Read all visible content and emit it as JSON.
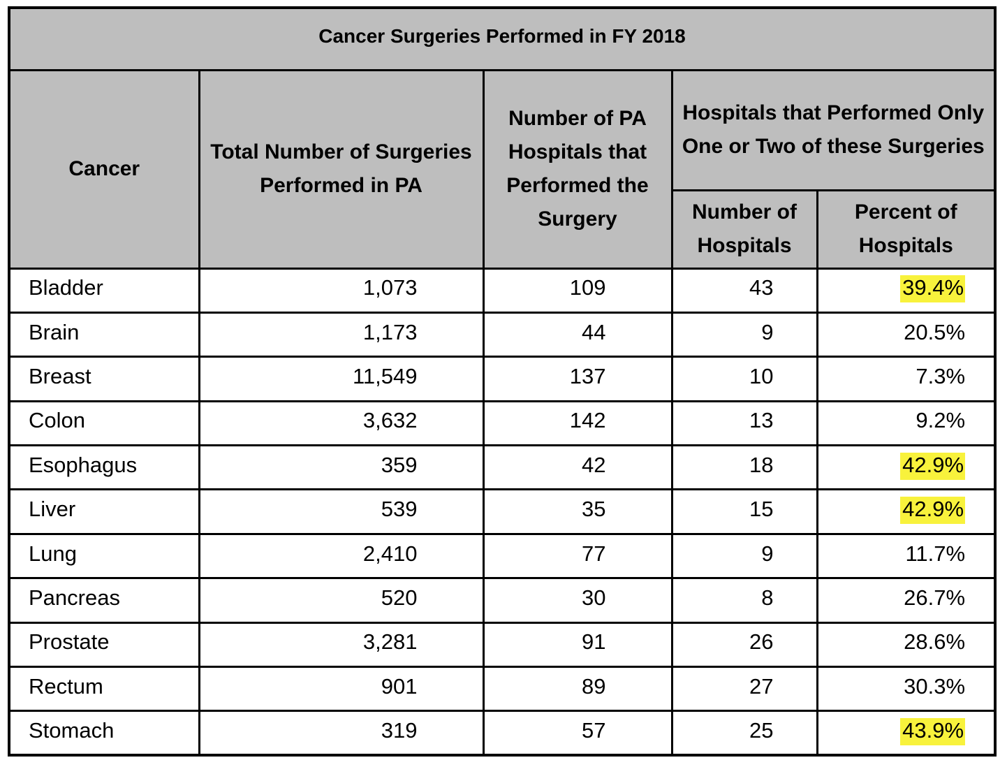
{
  "table": {
    "title": "Cancer Surgeries Performed in FY 2018",
    "columns": {
      "cancer": "Cancer",
      "total_surgeries": "Total Number of Surgeries\nPerformed in PA",
      "hospitals_performed": "Number of PA\nHospitals that\nPerformed the\nSurgery",
      "one_or_two_group": "Hospitals that Performed Only\nOne or Two of these Surgeries",
      "one_or_two_number": "Number of\nHospitals",
      "one_or_two_percent": "Percent of\nHospitals"
    },
    "rows": [
      {
        "cancer": "Bladder",
        "total": "1,073",
        "hospitals": "109",
        "one_two_count": "43",
        "one_two_pct": "39.4%",
        "pct_highlighted": true
      },
      {
        "cancer": "Brain",
        "total": "1,173",
        "hospitals": "44",
        "one_two_count": "9",
        "one_two_pct": "20.5%",
        "pct_highlighted": false
      },
      {
        "cancer": "Breast",
        "total": "11,549",
        "hospitals": "137",
        "one_two_count": "10",
        "one_two_pct": "7.3%",
        "pct_highlighted": false
      },
      {
        "cancer": "Colon",
        "total": "3,632",
        "hospitals": "142",
        "one_two_count": "13",
        "one_two_pct": "9.2%",
        "pct_highlighted": false
      },
      {
        "cancer": "Esophagus",
        "total": "359",
        "hospitals": "42",
        "one_two_count": "18",
        "one_two_pct": "42.9%",
        "pct_highlighted": true
      },
      {
        "cancer": "Liver",
        "total": "539",
        "hospitals": "35",
        "one_two_count": "15",
        "one_two_pct": "42.9%",
        "pct_highlighted": true
      },
      {
        "cancer": "Lung",
        "total": "2,410",
        "hospitals": "77",
        "one_two_count": "9",
        "one_two_pct": "11.7%",
        "pct_highlighted": false
      },
      {
        "cancer": "Pancreas",
        "total": "520",
        "hospitals": "30",
        "one_two_count": "8",
        "one_two_pct": "26.7%",
        "pct_highlighted": false
      },
      {
        "cancer": "Prostate",
        "total": "3,281",
        "hospitals": "91",
        "one_two_count": "26",
        "one_two_pct": "28.6%",
        "pct_highlighted": false
      },
      {
        "cancer": "Rectum",
        "total": "901",
        "hospitals": "89",
        "one_two_count": "27",
        "one_two_pct": "30.3%",
        "pct_highlighted": false
      },
      {
        "cancer": "Stomach",
        "total": "319",
        "hospitals": "57",
        "one_two_count": "25",
        "one_two_pct": "43.9%",
        "pct_highlighted": true
      }
    ]
  },
  "colors": {
    "header_background": "#bebebe",
    "highlight_yellow": "#f8f23c",
    "border": "#000000",
    "text": "#000000"
  },
  "chart_data": {
    "type": "table",
    "title": "Cancer Surgeries Performed in FY 2018",
    "columns": [
      "Cancer",
      "Total Number of Surgeries Performed in PA",
      "Number of PA Hospitals that Performed the Surgery",
      "Hospitals that Performed Only One or Two of these Surgeries - Number of Hospitals",
      "Hospitals that Performed Only One or Two of these Surgeries - Percent of Hospitals"
    ],
    "rows": [
      [
        "Bladder",
        1073,
        109,
        43,
        "39.4%"
      ],
      [
        "Brain",
        1173,
        44,
        9,
        "20.5%"
      ],
      [
        "Breast",
        11549,
        137,
        10,
        "7.3%"
      ],
      [
        "Colon",
        3632,
        142,
        13,
        "9.2%"
      ],
      [
        "Esophagus",
        359,
        42,
        18,
        "42.9%"
      ],
      [
        "Liver",
        539,
        35,
        15,
        "42.9%"
      ],
      [
        "Lung",
        2410,
        77,
        9,
        "11.7%"
      ],
      [
        "Pancreas",
        520,
        30,
        8,
        "26.7%"
      ],
      [
        "Prostate",
        3281,
        91,
        26,
        "28.6%"
      ],
      [
        "Rectum",
        901,
        89,
        27,
        "30.3%"
      ],
      [
        "Stomach",
        319,
        57,
        25,
        "43.9%"
      ]
    ],
    "highlighted_cells": [
      {
        "row": "Bladder",
        "column": "Percent of Hospitals",
        "value": "39.4%"
      },
      {
        "row": "Esophagus",
        "column": "Percent of Hospitals",
        "value": "42.9%"
      },
      {
        "row": "Liver",
        "column": "Percent of Hospitals",
        "value": "42.9%"
      },
      {
        "row": "Stomach",
        "column": "Percent of Hospitals",
        "value": "43.9%"
      }
    ]
  }
}
